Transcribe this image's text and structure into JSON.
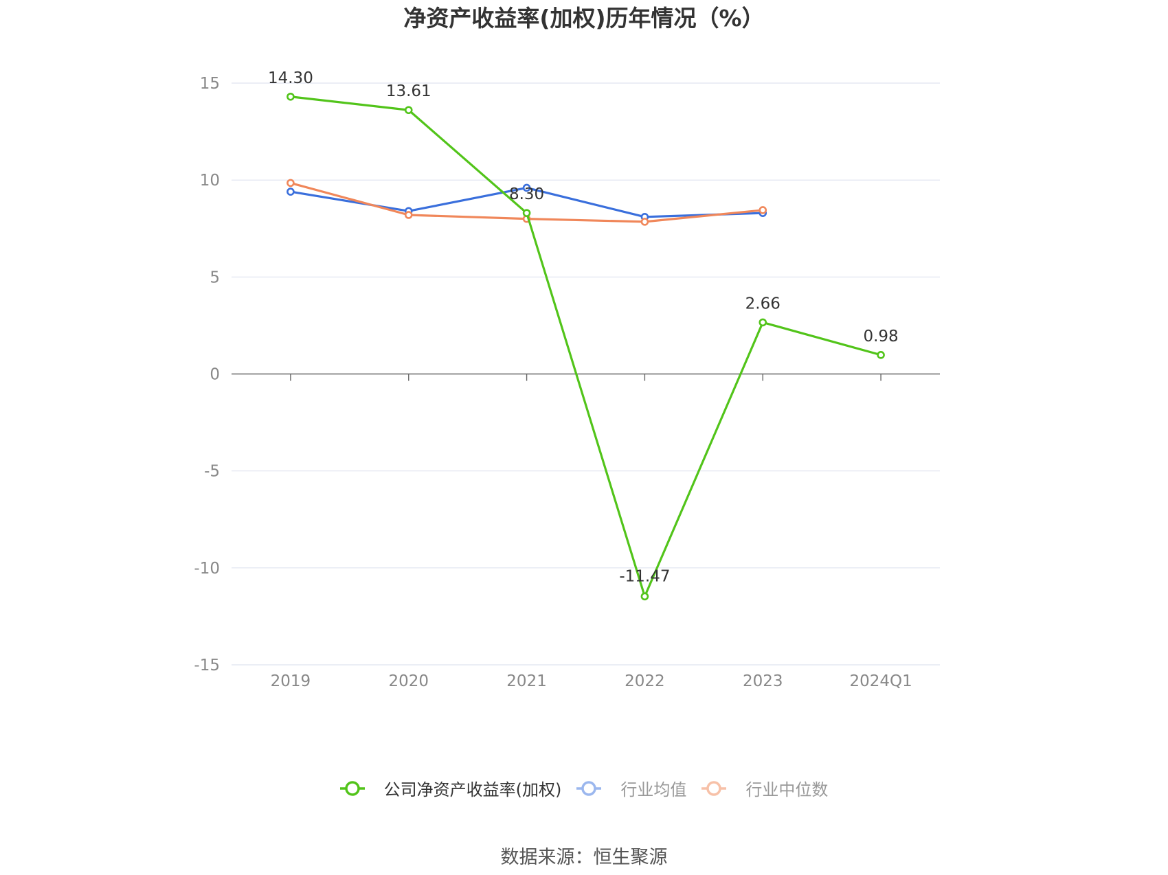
{
  "chart_data": {
    "type": "line",
    "title": "净资产收益率(加权)历年情况（%）",
    "categories": [
      "2019",
      "2020",
      "2021",
      "2022",
      "2023",
      "2024Q1"
    ],
    "ylim": [
      -15,
      15
    ],
    "yticks": [
      15,
      10,
      5,
      0,
      -5,
      -10,
      -15
    ],
    "grid": true,
    "legend_position": "bottom",
    "series": [
      {
        "name": "公司净资产收益率(加权)",
        "color": "#52c41a",
        "values": [
          14.3,
          13.61,
          8.3,
          -11.47,
          2.66,
          0.98
        ],
        "labels": [
          "14.30",
          "13.61",
          "8.30",
          "-11.47",
          "2.66",
          "0.98"
        ]
      },
      {
        "name": "行业均值",
        "color": "#3a6fdc",
        "values": [
          9.4,
          8.4,
          9.6,
          8.1,
          8.3,
          null
        ]
      },
      {
        "name": "行业中位数",
        "color": "#f0875a",
        "values": [
          9.85,
          8.2,
          8.0,
          7.85,
          8.45,
          null
        ]
      }
    ]
  },
  "legend_colors": {
    "active_0": "#52c41a",
    "faded_1": "#9bb7ee",
    "faded_2": "#f7c1a8"
  },
  "source": "数据来源：恒生聚源"
}
